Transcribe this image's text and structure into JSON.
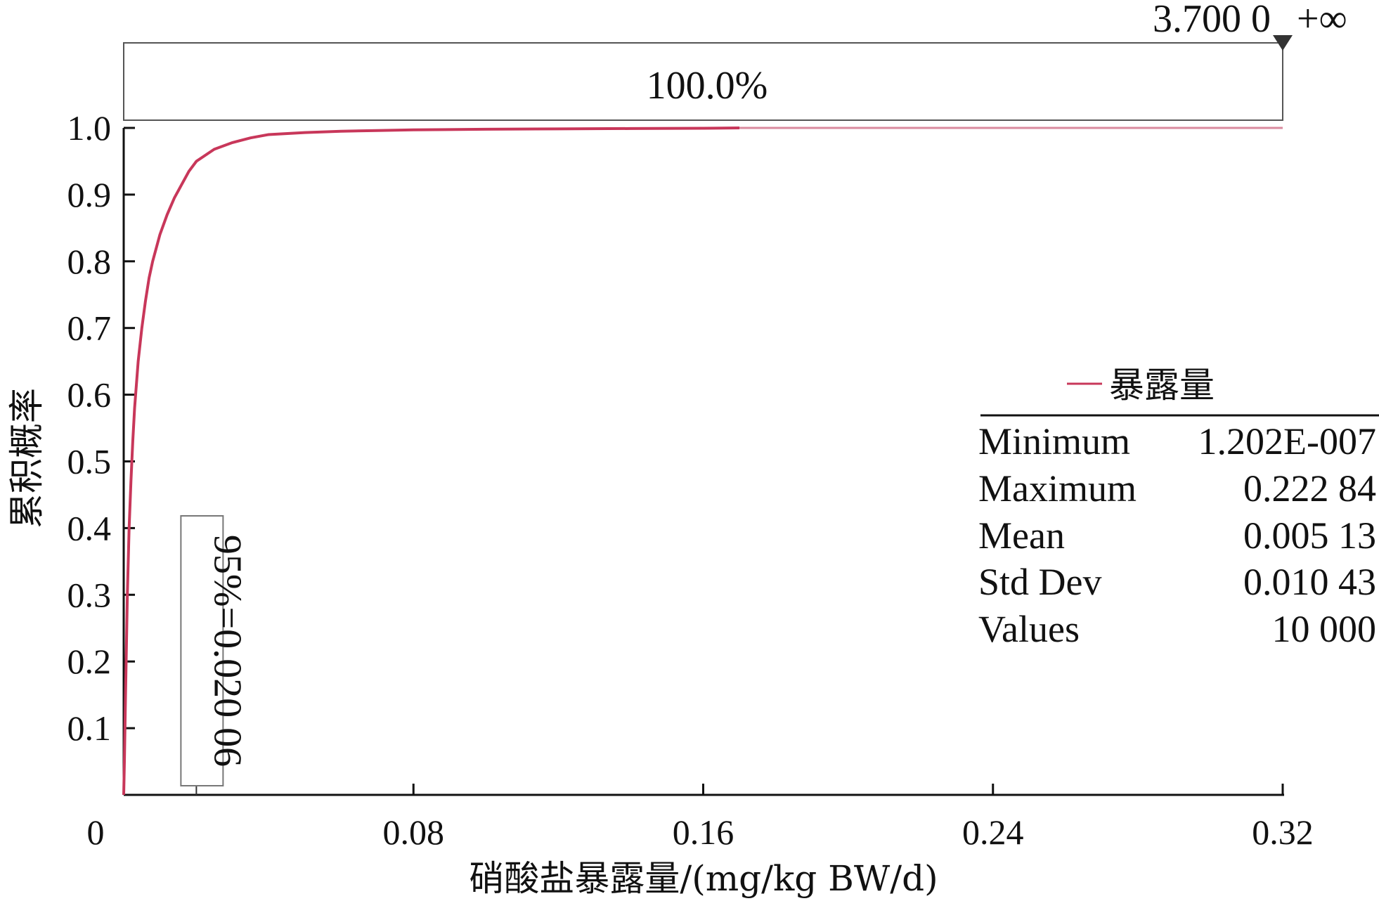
{
  "chart_data": {
    "type": "line",
    "xlabel": "硝酸盐暴露量/(mg/kg BW/d)",
    "ylabel": "累积概率",
    "xlim": [
      0,
      0.32
    ],
    "ylim": [
      0,
      1.0
    ],
    "x_ticks": [
      {
        "value": 0,
        "label": "0"
      },
      {
        "value": 0.08,
        "label": "0.08"
      },
      {
        "value": 0.16,
        "label": "0.16"
      },
      {
        "value": 0.24,
        "label": "0.24"
      },
      {
        "value": 0.32,
        "label": "0.32"
      }
    ],
    "y_ticks": [
      {
        "value": 0.1,
        "label": "0.1"
      },
      {
        "value": 0.2,
        "label": "0.2"
      },
      {
        "value": 0.3,
        "label": "0.3"
      },
      {
        "value": 0.4,
        "label": "0.4"
      },
      {
        "value": 0.5,
        "label": "0.5"
      },
      {
        "value": 0.6,
        "label": "0.6"
      },
      {
        "value": 0.7,
        "label": "0.7"
      },
      {
        "value": 0.8,
        "label": "0.8"
      },
      {
        "value": 0.9,
        "label": "0.9"
      },
      {
        "value": 1.0,
        "label": "1.0"
      }
    ],
    "grid": false,
    "series": [
      {
        "name": "暴露量",
        "color": "#c8375a",
        "x": [
          0,
          0.0002,
          0.0005,
          0.001,
          0.0015,
          0.002,
          0.0025,
          0.003,
          0.004,
          0.005,
          0.006,
          0.007,
          0.008,
          0.01,
          0.012,
          0.014,
          0.016,
          0.018,
          0.02006,
          0.025,
          0.03,
          0.035,
          0.04,
          0.05,
          0.06,
          0.07,
          0.08,
          0.1,
          0.12,
          0.14,
          0.16,
          0.17
        ],
        "y": [
          0,
          0.05,
          0.15,
          0.3,
          0.4,
          0.47,
          0.53,
          0.58,
          0.65,
          0.7,
          0.74,
          0.775,
          0.8,
          0.84,
          0.87,
          0.895,
          0.915,
          0.935,
          0.95,
          0.968,
          0.978,
          0.985,
          0.99,
          0.993,
          0.995,
          0.996,
          0.997,
          0.998,
          0.9985,
          0.999,
          0.9995,
          1.0
        ]
      }
    ],
    "tail_line": {
      "x": [
        0.17,
        0.32
      ],
      "y": [
        1.0,
        1.0
      ],
      "color": "#d98a9e"
    },
    "percentile_marker": {
      "value": 0.02006,
      "label": "95%=0.020 06"
    },
    "range_bar": {
      "label": "100.0%",
      "max_label": "3.700 0",
      "inf_label": "+∞"
    },
    "legend": {
      "label": "暴露量",
      "position": "right"
    },
    "stats": [
      {
        "name": "Minimum",
        "value": "1.202E-007"
      },
      {
        "name": "Maximum",
        "value": "0.222 84"
      },
      {
        "name": "Mean",
        "value": "0.005 13"
      },
      {
        "name": "Std Dev",
        "value": "0.010 43"
      },
      {
        "name": "Values",
        "value": "10 000"
      }
    ]
  }
}
